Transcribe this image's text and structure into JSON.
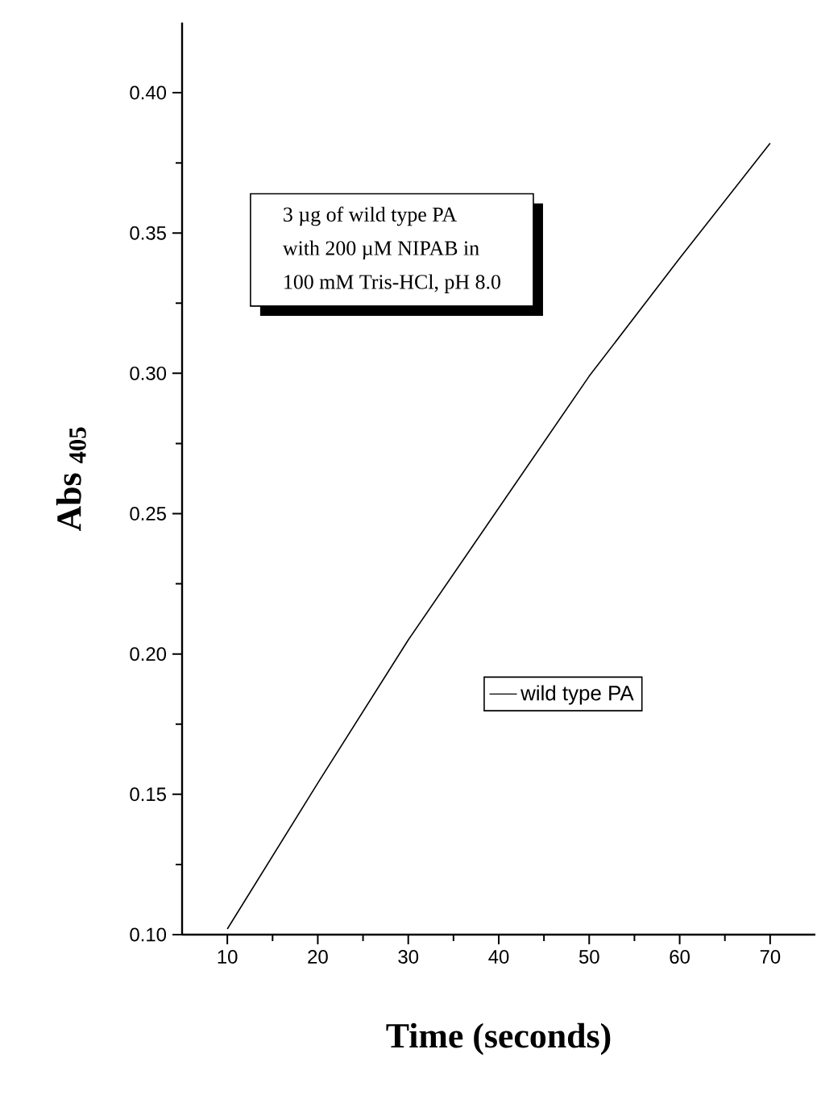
{
  "chart_data": {
    "type": "line",
    "xlabel": "Time (seconds)",
    "ylabel": "Abs $_{405}$",
    "annotations": [
      "3 µg of wild type PA",
      "with 200 µM NIPAB in",
      "100 mM Tris-HCl, pH 8.0"
    ],
    "x": [
      10,
      20,
      30,
      40,
      50,
      60,
      70
    ],
    "series": [
      {
        "name": "wild type PA",
        "color": "#000000",
        "values": [
          0.102,
          0.154,
          0.205,
          0.252,
          0.299,
          0.341,
          0.382
        ]
      }
    ],
    "xlim": [
      5,
      75
    ],
    "ylim": [
      0.1,
      0.425
    ],
    "xticks": [
      10,
      20,
      30,
      40,
      50,
      60,
      70
    ],
    "yticks": [
      {
        "value": 0.1,
        "label": "0.10"
      },
      {
        "value": 0.15,
        "label": "0.15"
      },
      {
        "value": 0.2,
        "label": "0.20"
      },
      {
        "value": 0.25,
        "label": "0.25"
      },
      {
        "value": 0.3,
        "label": "0.30"
      },
      {
        "value": 0.35,
        "label": "0.35"
      },
      {
        "value": 0.4,
        "label": "0.40"
      }
    ],
    "legend": "right",
    "grid": false,
    "marker": "none",
    "line_style": "solid"
  }
}
